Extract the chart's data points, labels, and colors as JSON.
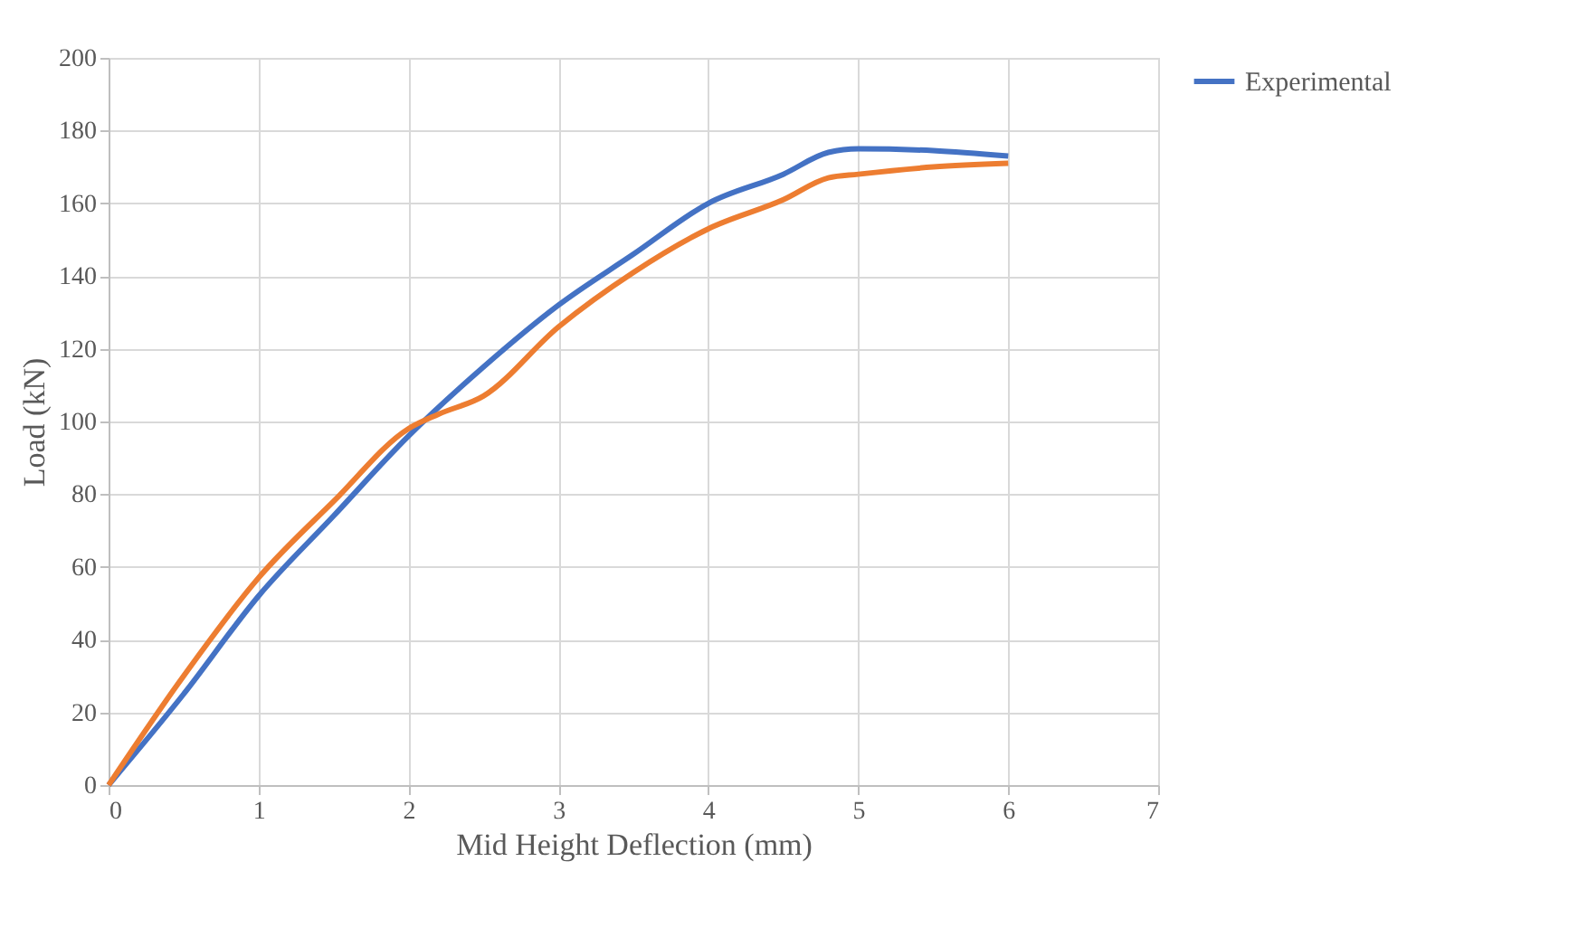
{
  "chart_data": {
    "type": "line",
    "xlabel": "Mid Height Deflection (mm)",
    "ylabel": "Load (kN)",
    "xlim": [
      0,
      7
    ],
    "xticks": [
      0,
      1,
      2,
      3,
      4,
      5,
      6,
      7
    ],
    "ylim": [
      0,
      200
    ],
    "yticks": [
      0,
      20,
      40,
      60,
      80,
      100,
      120,
      140,
      160,
      180,
      200
    ],
    "grid": true,
    "legend": "right",
    "marker": "none",
    "line_style": "solid",
    "series": [
      {
        "name": "Experimental",
        "color": "#4472c4",
        "x": [
          0,
          0.5,
          1,
          1.5,
          2,
          2.5,
          3,
          3.5,
          4,
          4.5,
          4.8,
          5,
          5.5,
          6
        ],
        "values": [
          0,
          25,
          52,
          74,
          96,
          115,
          132,
          146,
          160,
          168,
          174,
          175,
          174.5,
          173
        ]
      },
      {
        "color": "#ed7d31",
        "x": [
          0,
          0.5,
          1,
          1.5,
          2,
          2.2,
          2.5,
          3,
          3.5,
          4,
          4.5,
          4.8,
          5,
          5.5,
          6
        ],
        "values": [
          0,
          30,
          57,
          78,
          98,
          102,
          107,
          126,
          141,
          153,
          161,
          167,
          168,
          170,
          171
        ]
      }
    ]
  }
}
